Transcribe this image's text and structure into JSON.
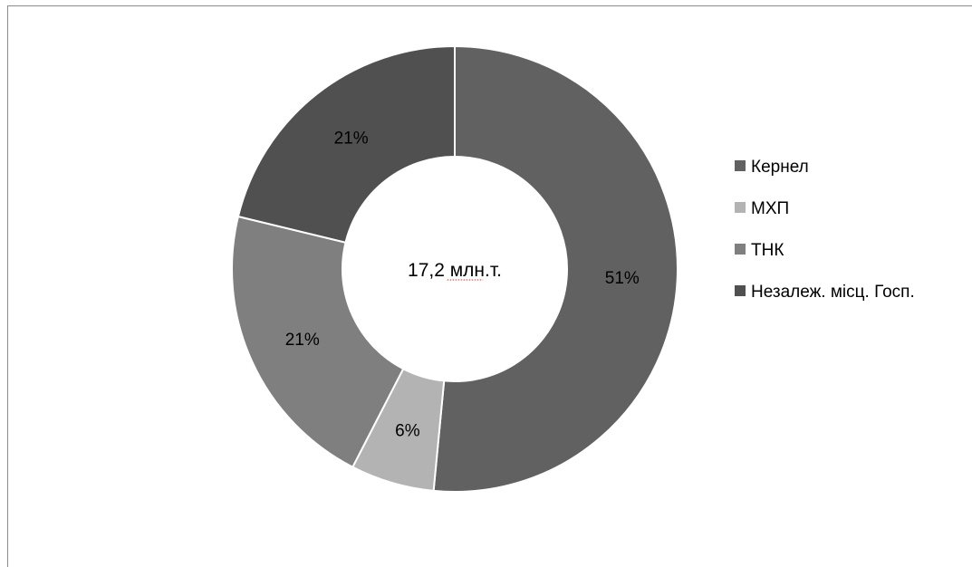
{
  "chart_data": {
    "type": "pie",
    "variant": "donut",
    "center_text": "17,2 млн.т.",
    "categories": [
      "Кернел",
      "МХП",
      "ТНК",
      "Незалеж. місц. Госп."
    ],
    "values": [
      51,
      6,
      21,
      21
    ],
    "value_labels": [
      "51%",
      "6%",
      "21%",
      "21%"
    ],
    "colors": [
      "#616161",
      "#b3b3b3",
      "#7f7f7f",
      "#505050"
    ],
    "legend_position": "right"
  }
}
